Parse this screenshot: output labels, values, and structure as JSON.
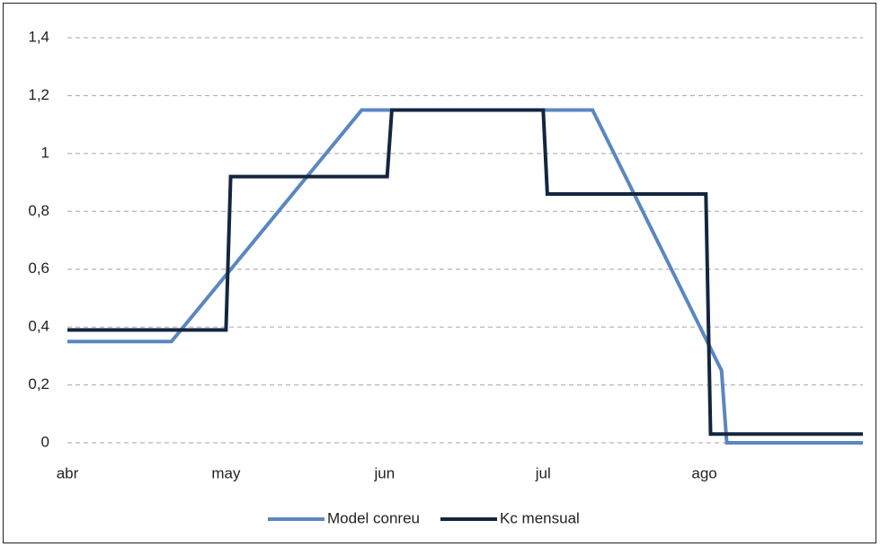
{
  "chart_data": {
    "type": "line",
    "xlim": [
      0,
      153
    ],
    "xticks": [
      {
        "value": 0,
        "label": "abr"
      },
      {
        "value": 30.5,
        "label": "may"
      },
      {
        "value": 61,
        "label": "jun"
      },
      {
        "value": 91.5,
        "label": "jul"
      },
      {
        "value": 122.5,
        "label": "ago"
      }
    ],
    "ylim": [
      0,
      1.4
    ],
    "yticks": [
      0,
      {
        "value": 0.2,
        "label": "0,2"
      },
      {
        "value": 0.4,
        "label": "0,4"
      },
      {
        "value": 0.6,
        "label": "0,6"
      },
      {
        "value": 0.8,
        "label": "0,8"
      },
      1,
      {
        "value": 1.2,
        "label": "1,2"
      },
      {
        "value": 1.4,
        "label": "1,4"
      }
    ],
    "grid": true,
    "legend": "bottom",
    "series": [
      {
        "name": "Model conreu",
        "color": "#5b87c0",
        "x": [
          0,
          20,
          56.6,
          101,
          125.8,
          126.8,
          153
        ],
        "values": [
          0.35,
          0.35,
          1.15,
          1.15,
          0.25,
          0,
          0
        ]
      },
      {
        "name": "Kc mensual",
        "color": "#14263f",
        "x": [
          0,
          30.5,
          31.4,
          61.5,
          62.4,
          91.5,
          92.3,
          122.8,
          123.7,
          153
        ],
        "values": [
          0.39,
          0.39,
          0.92,
          0.92,
          1.15,
          1.15,
          0.86,
          0.86,
          0.03,
          0.03
        ]
      }
    ]
  }
}
